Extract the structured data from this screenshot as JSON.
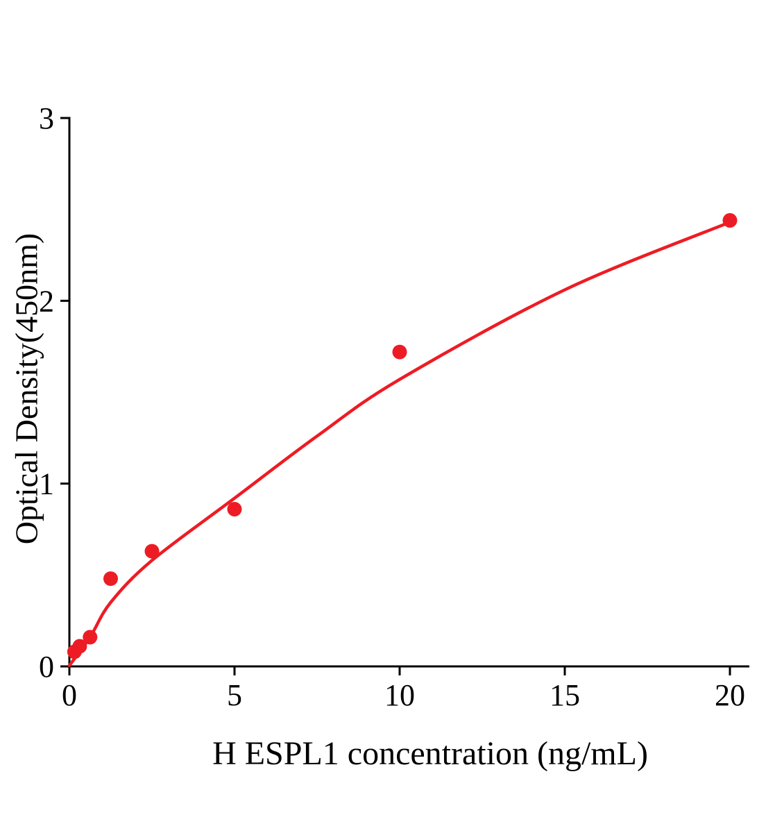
{
  "figure": {
    "background": "#ffffff"
  },
  "chart_data": {
    "type": "scatter",
    "title": "",
    "xlabel": "H ESPL1 concentration (ng/mL)",
    "ylabel": "Optical Density(450nm)",
    "xlim": [
      0,
      20.6
    ],
    "ylim": [
      0,
      3
    ],
    "x_ticks": [
      0,
      5,
      10,
      15,
      20
    ],
    "y_ticks": [
      0,
      1,
      2,
      3
    ],
    "grid": false,
    "legend": "none",
    "colors": {
      "points": "#ed1c24",
      "curve": "#ed1c24",
      "axis": "#000000",
      "text": "#000000"
    },
    "points": {
      "x": [
        0.156,
        0.3125,
        0.625,
        1.25,
        2.5,
        5,
        10,
        20
      ],
      "y": [
        0.08,
        0.11,
        0.16,
        0.48,
        0.63,
        0.86,
        1.72,
        2.44
      ]
    },
    "fit_curve": {
      "x": [
        0,
        0.625,
        1.25,
        2.5,
        5,
        7.5,
        10,
        15,
        20
      ],
      "y": [
        0.005,
        0.16,
        0.35,
        0.58,
        0.92,
        1.26,
        1.57,
        2.06,
        2.43
      ]
    }
  }
}
